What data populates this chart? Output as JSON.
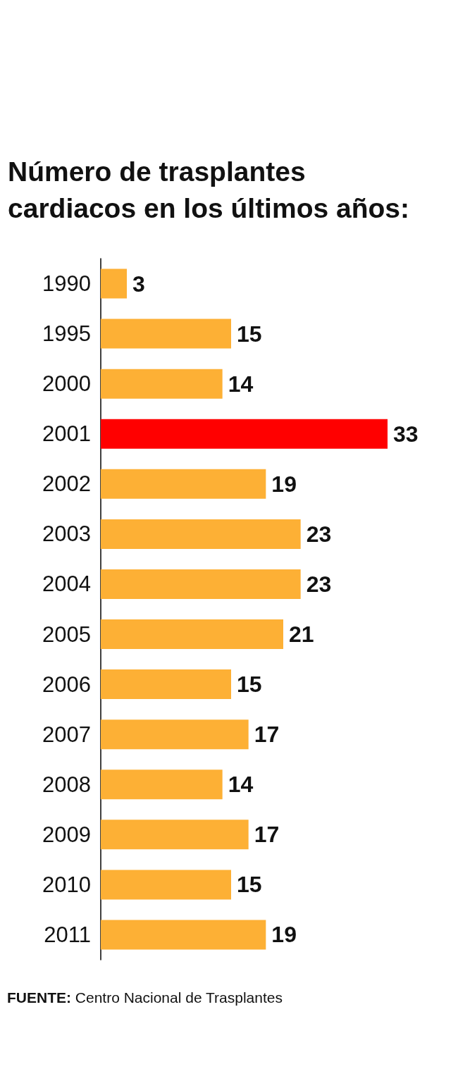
{
  "chart_data": {
    "type": "bar",
    "orientation": "horizontal",
    "title": "Número de trasplantes cardiacos en los últimos años:",
    "categories": [
      "1990",
      "1995",
      "2000",
      "2001",
      "2002",
      "2003",
      "2004",
      "2005",
      "2006",
      "2007",
      "2008",
      "2009",
      "2010",
      "2011"
    ],
    "values": [
      3,
      15,
      14,
      33,
      19,
      23,
      23,
      21,
      15,
      17,
      14,
      17,
      15,
      19
    ],
    "colors": [
      "#fdb035",
      "#fdb035",
      "#fdb035",
      "#ff0000",
      "#fdb035",
      "#fdb035",
      "#fdb035",
      "#fdb035",
      "#fdb035",
      "#fdb035",
      "#fdb035",
      "#fdb035",
      "#fdb035",
      "#fdb035"
    ],
    "data_labels": true,
    "annotations": [
      "FUENTE: Centro Nacional de Trasplantes"
    ]
  }
}
